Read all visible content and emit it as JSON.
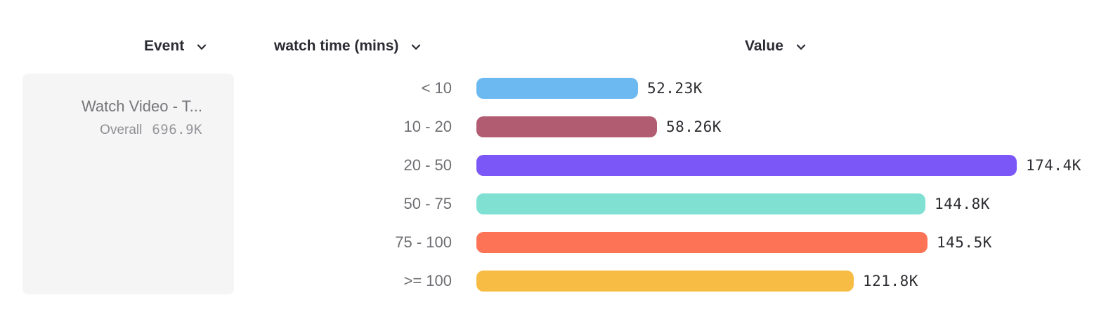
{
  "header": {
    "event_label": "Event",
    "breakdown_label": "watch time (mins)",
    "value_label": "Value"
  },
  "icons": {
    "header_dropdown": "chevron-down-icon"
  },
  "event_card": {
    "event_name": "Watch Video - T...",
    "overall_label": "Overall",
    "overall_value": "696.9K"
  },
  "colors": {
    "event_card_bg": "#f5f5f6",
    "header_text": "#2b2b33",
    "row_label_text": "#6e6e73",
    "value_label_text": "#2d2d32"
  },
  "chart_data": {
    "type": "bar",
    "orientation": "horizontal",
    "title": "",
    "xlabel": "",
    "ylabel": "watch time (mins)",
    "grid": false,
    "legend": false,
    "categories": [
      "< 10",
      "10 - 20",
      "20 - 50",
      "50 - 75",
      "75 - 100",
      ">= 100"
    ],
    "values_k": [
      52.23,
      58.26,
      174.4,
      144.8,
      145.5,
      121.8
    ],
    "value_labels": [
      "52.23K",
      "58.26K",
      "174.4K",
      "144.8K",
      "145.5K",
      "121.8K"
    ],
    "bar_colors": [
      "#6cb9f2",
      "#b25c71",
      "#7b57f7",
      "#80e0d2",
      "#fd7355",
      "#f6bc43"
    ],
    "x_range_k": [
      0,
      190
    ]
  }
}
